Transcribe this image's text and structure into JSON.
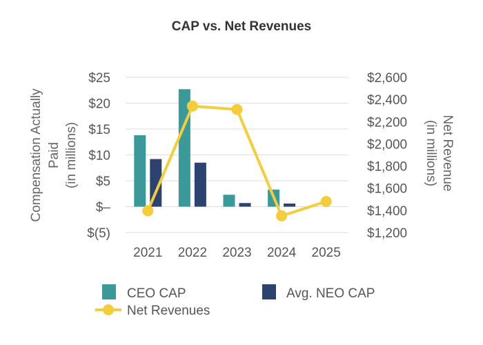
{
  "chart_data": {
    "type": "bar",
    "title": "CAP vs. Net Revenues",
    "categories": [
      "2021",
      "2022",
      "2023",
      "2024",
      "2025"
    ],
    "ylabel_left": [
      "Compensation Actually",
      "Paid",
      "(in millions)"
    ],
    "ylabel_right": [
      "Net Revenue",
      "(in millions)"
    ],
    "yticks_left": [
      {
        "value": 25,
        "label": "$25"
      },
      {
        "value": 20,
        "label": "$20"
      },
      {
        "value": 15,
        "label": "$15"
      },
      {
        "value": 10,
        "label": "$10"
      },
      {
        "value": 5,
        "label": "$5"
      },
      {
        "value": 0,
        "label": "$–"
      },
      {
        "value": -5,
        "label": "$(5)"
      }
    ],
    "yticks_right": [
      {
        "value": 2600,
        "label": "$2,600"
      },
      {
        "value": 2400,
        "label": "$2,400"
      },
      {
        "value": 2200,
        "label": "$2,200"
      },
      {
        "value": 2000,
        "label": "$2,000"
      },
      {
        "value": 1800,
        "label": "$1,800"
      },
      {
        "value": 1600,
        "label": "$1,600"
      },
      {
        "value": 1400,
        "label": "$1,400"
      },
      {
        "value": 1200,
        "label": "$1,200"
      }
    ],
    "ylim_left": [
      -5,
      25
    ],
    "ylim_right": [
      1200,
      2600
    ],
    "grid": true,
    "legend_position": "bottom",
    "series": [
      {
        "name": "CEO CAP",
        "type": "bar",
        "axis": "left",
        "color": "#3a9a9a",
        "values": [
          13.8,
          22.7,
          2.3,
          3.3,
          null
        ]
      },
      {
        "name": "Avg. NEO CAP",
        "type": "bar",
        "axis": "left",
        "color": "#2c4370",
        "values": [
          9.2,
          8.5,
          0.7,
          0.6,
          null
        ]
      },
      {
        "name": "Net Revenues",
        "type": "line",
        "axis": "right",
        "color": "#f5cd3a",
        "values": [
          1396,
          2340,
          2310,
          1350,
          1480
        ]
      }
    ]
  }
}
